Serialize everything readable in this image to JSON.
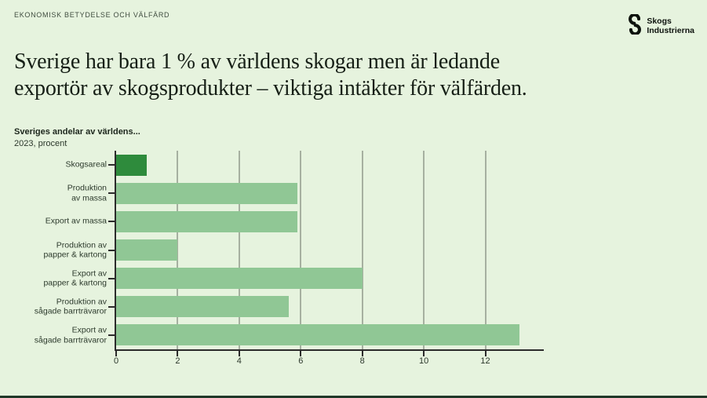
{
  "page": {
    "eyebrow": "EKONOMISK BETYDELSE OCH VÄLFÄRD",
    "title_line1": "Sverige har bara 1 % av världens skogar men är ledande",
    "title_line2": "exportör av skogsprodukter – viktiga intäkter för välfärden.",
    "logo": {
      "line1": "Skogs",
      "line2": "Industrierna"
    }
  },
  "colors": {
    "background": "#e6f3de",
    "bar": "#90c795",
    "bar_highlight": "#2e8b3c",
    "gridline": "#a6b0a0",
    "axis": "#2b2b2b",
    "text": "#2c3a2c",
    "bottom_border": "#203828"
  },
  "chart_data": {
    "type": "bar",
    "orientation": "horizontal",
    "title": "Sveriges andelar av världens...",
    "subtitle": "2023, procent",
    "categories": [
      "Skogsareal",
      "Produktion\nav massa",
      "Export av massa",
      "Produktion av\npapper & kartong",
      "Export av\npapper & kartong",
      "Produktion av\nsågade barrträvaror",
      "Export av\nsågade barrträvaror"
    ],
    "values": [
      1,
      5.9,
      5.9,
      2,
      8,
      5.6,
      13.1
    ],
    "highlight_index": 0,
    "xticks": [
      0,
      2,
      4,
      6,
      8,
      10,
      12
    ],
    "xlim": [
      0,
      13.9
    ],
    "grid": "vertical-only",
    "legend": "none"
  }
}
